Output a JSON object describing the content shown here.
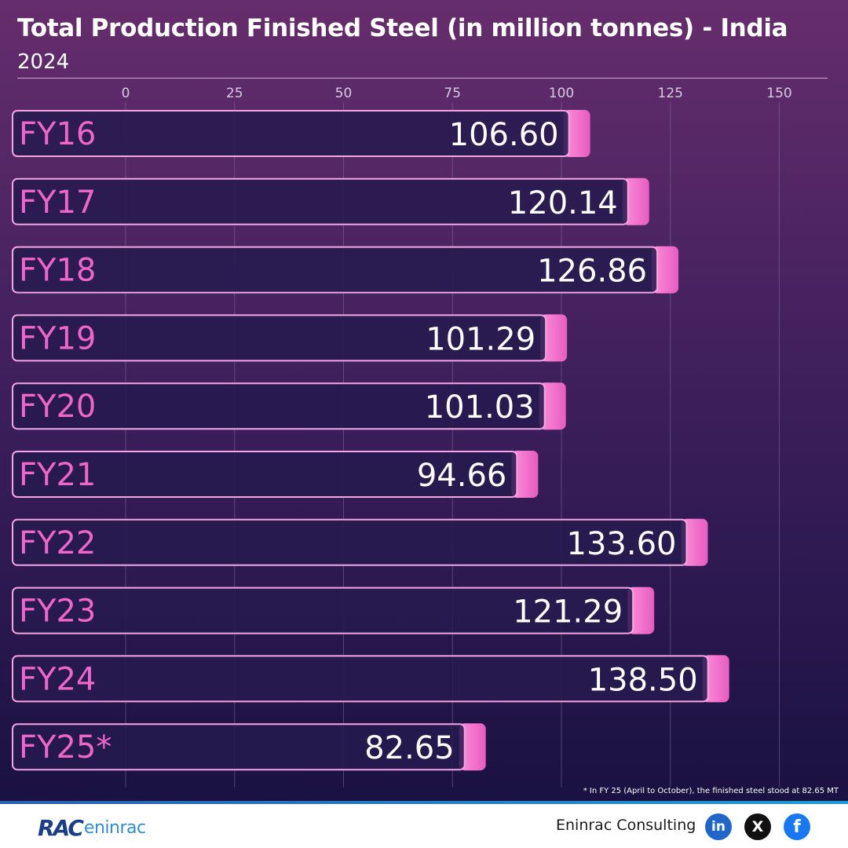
{
  "header": {
    "title": "Total Production Finished Steel (in million tonnes) - India",
    "subtitle": "2024"
  },
  "chart_data": {
    "type": "bar",
    "orientation": "horizontal",
    "title": "Total Production Finished Steel (in million tonnes) - India",
    "subtitle": "2024",
    "categories": [
      "FY16",
      "FY17",
      "FY18",
      "FY19",
      "FY20",
      "FY21",
      "FY22",
      "FY23",
      "FY24",
      "FY25*"
    ],
    "values": [
      106.6,
      120.14,
      126.86,
      101.29,
      101.03,
      94.66,
      133.6,
      121.29,
      138.5,
      82.65
    ],
    "value_labels": [
      "106.60",
      "120.14",
      "126.86",
      "101.29",
      "101.03",
      "94.66",
      "133.60",
      "121.29",
      "138.50",
      "82.65"
    ],
    "xticks": [
      0,
      25,
      50,
      75,
      100,
      125,
      150
    ],
    "xlim": [
      0,
      160
    ],
    "xlabel": "",
    "ylabel": "",
    "grid": true,
    "colors": {
      "bar_fill": "#261a4e",
      "bar_border": "#f4a6e4",
      "accent": "#f27fd4",
      "category_text": "#f065c9",
      "value_text": "#ffffff",
      "gridline": "#8a7ea8",
      "tick_text": "#d6cbe3"
    }
  },
  "footnote": "* In FY 25 (April to October), the finished steel stood at 82.65 MT",
  "footer": {
    "logo_mark": "RAC",
    "logo_text": "eninrac",
    "company": "Eninrac Consulting",
    "social": [
      {
        "icon": "linkedin-icon",
        "glyph": "in"
      },
      {
        "icon": "x-icon",
        "glyph": "X"
      },
      {
        "icon": "facebook-icon",
        "glyph": "f"
      }
    ]
  }
}
